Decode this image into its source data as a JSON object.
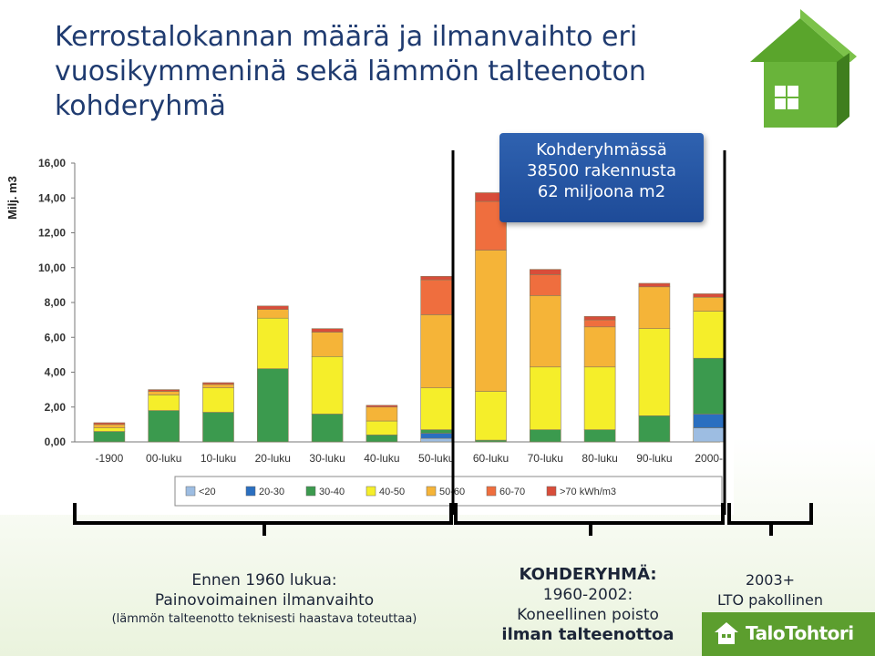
{
  "title_lines": [
    "Kerrostalokannan määrä ja ilmanvaihto eri",
    "vuosikymmeninä sekä lämmön talteenoton",
    "kohderyhmä"
  ],
  "callout": {
    "line1": "Kohderyhmässä",
    "line2": "38500 rakennusta",
    "line3": "62 miljoona m2",
    "color": "#2b5aa8"
  },
  "chart_data": {
    "type": "bar",
    "stacked": true,
    "ylabel": "Milj. m3",
    "ylim": [
      0,
      16
    ],
    "yticks": [
      "0,00",
      "2,00",
      "4,00",
      "6,00",
      "8,00",
      "10,00",
      "12,00",
      "14,00",
      "16,00"
    ],
    "categories": [
      "-1900",
      "00-luku",
      "10-luku",
      "20-luku",
      "30-luku",
      "40-luku",
      "50-luku",
      "60-luku",
      "70-luku",
      "80-luku",
      "90-luku",
      "2000-"
    ],
    "series": [
      {
        "name": "<20",
        "color": "#9dbde2",
        "values": [
          0,
          0,
          0,
          0,
          0,
          0,
          0.2,
          0,
          0,
          0,
          0,
          0.8
        ]
      },
      {
        "name": "20-30",
        "color": "#2a6fc0",
        "values": [
          0,
          0,
          0,
          0,
          0,
          0,
          0.3,
          0,
          0,
          0,
          0,
          0.8
        ]
      },
      {
        "name": "30-40",
        "color": "#3b9a4e",
        "values": [
          0.6,
          1.8,
          1.7,
          4.2,
          1.6,
          0.4,
          0.2,
          0.1,
          0.7,
          0.7,
          1.5,
          3.2
        ]
      },
      {
        "name": "40-50",
        "color": "#f5ee2a",
        "values": [
          0.2,
          0.9,
          1.4,
          2.9,
          3.3,
          0.8,
          2.4,
          2.8,
          3.6,
          3.6,
          5.0,
          2.7
        ]
      },
      {
        "name": "50-60",
        "color": "#f5b438",
        "values": [
          0.2,
          0.2,
          0.2,
          0.5,
          1.4,
          0.8,
          4.2,
          8.1,
          4.1,
          2.3,
          2.4,
          0.8
        ]
      },
      {
        "name": "60-70",
        "color": "#ef6e3e",
        "values": [
          0,
          0,
          0,
          0,
          0,
          0,
          2.0,
          2.8,
          1.2,
          0.4,
          0,
          0
        ]
      },
      {
        "name": ">70 kWh/m3",
        "color": "#d84d3a",
        "values": [
          0.1,
          0.1,
          0.1,
          0.2,
          0.2,
          0.1,
          0.2,
          0.5,
          0.3,
          0.2,
          0.2,
          0.2
        ]
      }
    ],
    "legend_position": "bottom",
    "grid": false
  },
  "groups": {
    "g1": {
      "line1": "Ennen 1960 lukua:",
      "line2": "Painovoimainen ilmanvaihto",
      "line3": "(lämmön talteenotto teknisesti haastava toteuttaa)"
    },
    "g2": {
      "line1": "KOHDERYHMÄ:",
      "line2": "1960-2002:",
      "line3": "Koneellinen poisto",
      "line4": "ilman talteenottoa"
    },
    "g3": {
      "line1": "2003+",
      "line2": "LTO pakollinen"
    }
  },
  "brand": {
    "name": "TaloTohtori",
    "color": "#5c9e2e"
  }
}
